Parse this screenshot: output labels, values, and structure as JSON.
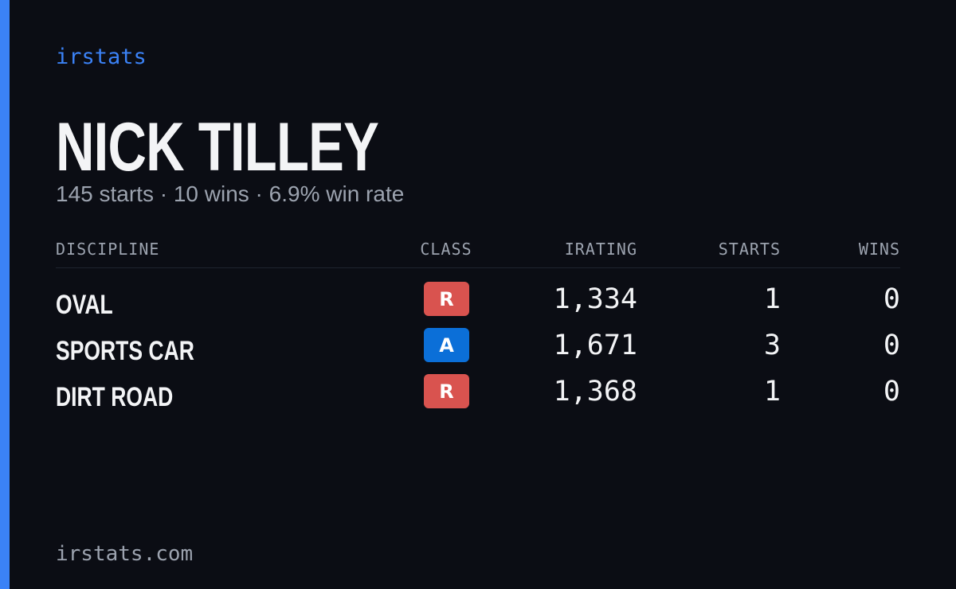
{
  "brand": "irstats",
  "profile": {
    "name": "NICK TILLEY",
    "summary": "145 starts · 10 wins · 6.9% win rate"
  },
  "table": {
    "headers": [
      "DISCIPLINE",
      "CLASS",
      "IRATING",
      "STARTS",
      "WINS"
    ],
    "rows": [
      {
        "discipline": "OVAL",
        "class": "R",
        "class_color": "#d9534f",
        "irating": "1,334",
        "starts": "1",
        "wins": "0"
      },
      {
        "discipline": "SPORTS CAR",
        "class": "A",
        "class_color": "#0b6fd8",
        "irating": "1,671",
        "starts": "3",
        "wins": "0"
      },
      {
        "discipline": "DIRT ROAD",
        "class": "R",
        "class_color": "#d9534f",
        "irating": "1,368",
        "starts": "1",
        "wins": "0"
      }
    ]
  },
  "footer": "irstats.com"
}
